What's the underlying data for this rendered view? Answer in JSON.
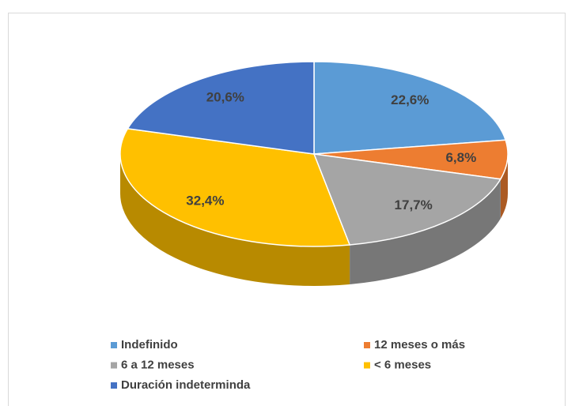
{
  "chart_data": {
    "type": "pie",
    "three_d": true,
    "categories": [
      "Indefinido",
      "12 meses o más",
      "6 a 12 meses",
      "< 6 meses",
      "Duración indeterminda"
    ],
    "values": [
      22.6,
      6.8,
      17.7,
      32.4,
      20.6
    ],
    "value_labels": [
      "22,6%",
      "6,8%",
      "17,7%",
      "32,4%",
      "20,6%"
    ],
    "colors": [
      "#5b9bd5",
      "#ed7d31",
      "#a5a5a5",
      "#ffc000",
      "#4472c4"
    ],
    "legend": "bottom"
  }
}
